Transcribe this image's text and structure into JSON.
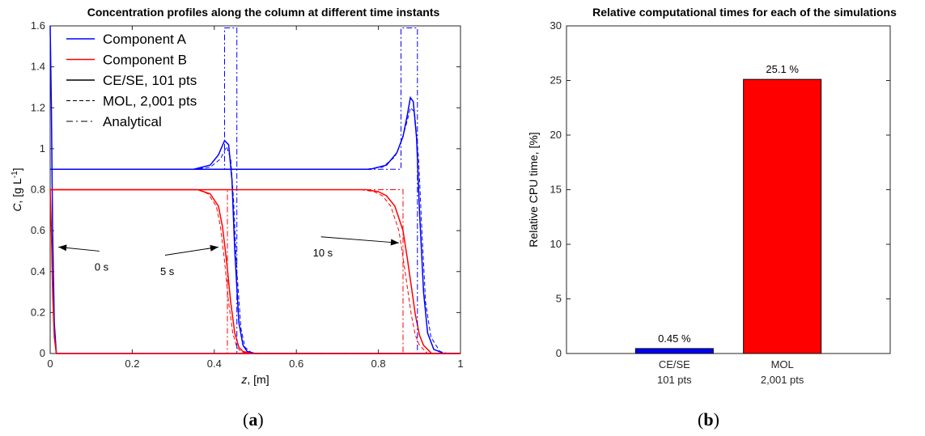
{
  "chart_data": [
    {
      "type": "line",
      "title": "Concentration profiles along the column at different time instants",
      "xlabel_var": "z",
      "xlabel_unit": ", [m]",
      "ylabel_var": "C",
      "ylabel_unit": ", [g L",
      "ylabel_exp": "-1",
      "ylabel_close": "]",
      "xlim": [
        0,
        1
      ],
      "ylim": [
        0,
        1.6
      ],
      "x_ticks": [
        "0",
        "0.2",
        "0.4",
        "0.6",
        "0.8",
        "1"
      ],
      "y_ticks": [
        "0",
        "0.2",
        "0.4",
        "0.6",
        "0.8",
        "1",
        "1.2",
        "1.4",
        "1.6"
      ],
      "grid": false,
      "legend_position": "top-left",
      "legend": [
        {
          "label": "Component A",
          "style": "solid",
          "color": "#0000ff"
        },
        {
          "label": "Component B",
          "style": "solid",
          "color": "#ff0000"
        },
        {
          "label": "CE/SE, 101 pts",
          "style": "solid",
          "color": "#000000"
        },
        {
          "label": "MOL, 2,001 pts",
          "style": "dashed",
          "color": "#000000"
        },
        {
          "label": "Analytical",
          "style": "dashdot",
          "color": "#000000"
        }
      ],
      "annotations": [
        {
          "text": "0 s",
          "x": 0.12,
          "y": 0.5,
          "arrow_to": [
            0.02,
            0.52
          ]
        },
        {
          "text": "5 s",
          "x": 0.28,
          "y": 0.48,
          "arrow_to": [
            0.41,
            0.52
          ]
        },
        {
          "text": "10 s",
          "x": 0.66,
          "y": 0.57,
          "arrow_to": [
            0.85,
            0.54
          ]
        }
      ],
      "series": [
        {
          "name": "Component A",
          "method": "CE/SE, 101 pts",
          "time": "0 s",
          "x": [
            0,
            0.003,
            0.006,
            0.01,
            0.015,
            1
          ],
          "y": [
            1.6,
            1.2,
            0.6,
            0.15,
            0,
            0
          ]
        },
        {
          "name": "Component B",
          "method": "CE/SE, 101 pts",
          "time": "0 s",
          "x": [
            0,
            0.003,
            0.006,
            0.01,
            0.015,
            1
          ],
          "y": [
            0.8,
            0.6,
            0.3,
            0.08,
            0,
            0
          ]
        },
        {
          "name": "Component A",
          "method": "CE/SE, 101 pts",
          "time": "5 s",
          "x": [
            0,
            0.35,
            0.39,
            0.41,
            0.425,
            0.435,
            0.443,
            0.45,
            0.46,
            0.47,
            0.48,
            0.5,
            1
          ],
          "y": [
            0.9,
            0.9,
            0.92,
            0.97,
            1.04,
            1.02,
            0.85,
            0.5,
            0.15,
            0.04,
            0.01,
            0,
            0
          ]
        },
        {
          "name": "Component A",
          "method": "MOL, 2,001 pts",
          "time": "5 s",
          "x": [
            0,
            0.35,
            0.39,
            0.415,
            0.43,
            0.44,
            0.447,
            0.455,
            0.465,
            0.475,
            0.49,
            0.51,
            1
          ],
          "y": [
            0.9,
            0.9,
            0.91,
            0.95,
            1.01,
            0.95,
            0.75,
            0.4,
            0.12,
            0.03,
            0.005,
            0,
            0
          ]
        },
        {
          "name": "Component B",
          "method": "CE/SE, 101 pts",
          "time": "5 s",
          "x": [
            0,
            0.36,
            0.39,
            0.41,
            0.42,
            0.43,
            0.44,
            0.45,
            0.46,
            0.47,
            0.49,
            1
          ],
          "y": [
            0.8,
            0.8,
            0.78,
            0.72,
            0.62,
            0.45,
            0.25,
            0.1,
            0.03,
            0.01,
            0,
            0
          ]
        },
        {
          "name": "Component B",
          "method": "MOL, 2,001 pts",
          "time": "5 s",
          "x": [
            0,
            0.36,
            0.385,
            0.405,
            0.415,
            0.425,
            0.435,
            0.445,
            0.455,
            0.465,
            0.48,
            1
          ],
          "y": [
            0.8,
            0.8,
            0.78,
            0.72,
            0.62,
            0.45,
            0.25,
            0.1,
            0.03,
            0.01,
            0,
            0
          ]
        },
        {
          "name": "Component A",
          "method": "CE/SE, 101 pts",
          "time": "10 s",
          "x": [
            0,
            0.78,
            0.82,
            0.845,
            0.86,
            0.87,
            0.878,
            0.885,
            0.893,
            0.9,
            0.91,
            0.92,
            0.935,
            0.96,
            1
          ],
          "y": [
            0.9,
            0.9,
            0.92,
            0.98,
            1.06,
            1.16,
            1.25,
            1.23,
            1.05,
            0.7,
            0.3,
            0.1,
            0.02,
            0,
            0
          ]
        },
        {
          "name": "Component A",
          "method": "MOL, 2,001 pts",
          "time": "10 s",
          "x": [
            0,
            0.77,
            0.81,
            0.84,
            0.855,
            0.868,
            0.878,
            0.888,
            0.898,
            0.906,
            0.915,
            0.928,
            0.95,
            0.97,
            1
          ],
          "y": [
            0.9,
            0.9,
            0.91,
            0.96,
            1.03,
            1.12,
            1.2,
            1.18,
            0.95,
            0.6,
            0.25,
            0.08,
            0.01,
            0,
            0
          ]
        },
        {
          "name": "Component B",
          "method": "CE/SE, 101 pts",
          "time": "10 s",
          "x": [
            0,
            0.77,
            0.8,
            0.82,
            0.84,
            0.86,
            0.87,
            0.88,
            0.89,
            0.9,
            0.91,
            0.93,
            1
          ],
          "y": [
            0.8,
            0.8,
            0.79,
            0.77,
            0.72,
            0.6,
            0.47,
            0.33,
            0.19,
            0.09,
            0.04,
            0,
            0
          ]
        },
        {
          "name": "Component B",
          "method": "MOL, 2,001 pts",
          "time": "10 s",
          "x": [
            0,
            0.76,
            0.79,
            0.81,
            0.83,
            0.85,
            0.86,
            0.87,
            0.88,
            0.89,
            0.9,
            0.92,
            1
          ],
          "y": [
            0.8,
            0.8,
            0.79,
            0.77,
            0.72,
            0.6,
            0.47,
            0.33,
            0.19,
            0.09,
            0.04,
            0,
            0
          ]
        },
        {
          "name": "Component A",
          "method": "Analytical",
          "time": "5 s",
          "x": [
            0,
            0.425,
            0.425,
            0.455,
            0.455,
            1
          ],
          "y": [
            0.9,
            0.9,
            1.59,
            1.59,
            0,
            0
          ]
        },
        {
          "name": "Component B",
          "method": "Analytical",
          "time": "5 s",
          "x": [
            0,
            0.432,
            0.432,
            1
          ],
          "y": [
            0.8,
            0.8,
            0,
            0
          ]
        },
        {
          "name": "Component A",
          "method": "Analytical",
          "time": "10 s",
          "x": [
            0,
            0.855,
            0.855,
            0.895,
            0.895,
            1
          ],
          "y": [
            0.9,
            0.9,
            1.59,
            1.59,
            0,
            0
          ]
        },
        {
          "name": "Component B",
          "method": "Analytical",
          "time": "10 s",
          "x": [
            0,
            0.86,
            0.86,
            1
          ],
          "y": [
            0.8,
            0.8,
            0,
            0
          ]
        }
      ]
    },
    {
      "type": "bar",
      "title": "Relative computational times for each of the simulations",
      "ylabel": "Relative CPU time, [%]",
      "ylim": [
        0,
        30
      ],
      "y_ticks": [
        "0",
        "5",
        "10",
        "15",
        "20",
        "25",
        "30"
      ],
      "categories": [
        [
          "CE/SE",
          "101 pts"
        ],
        [
          "MOL",
          "2,001 pts"
        ]
      ],
      "values": [
        0.45,
        25.1
      ],
      "data_labels": [
        "0.45 %",
        "25.1 %"
      ],
      "colors": [
        "#0000ff",
        "#ff0000"
      ]
    }
  ],
  "captions": {
    "a": "a",
    "b": "b"
  }
}
